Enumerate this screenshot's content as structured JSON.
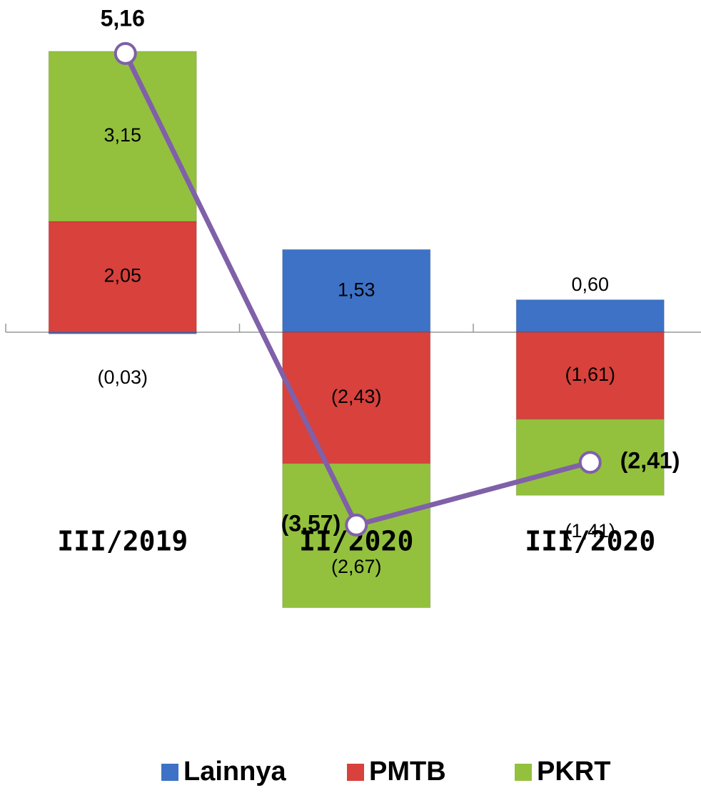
{
  "chart_data": {
    "type": "bar",
    "categories": [
      "III/2019",
      "II/2020",
      "III/2020"
    ],
    "series": [
      {
        "name": "Lainnya",
        "color": "#3d72c6",
        "values": [
          -0.03,
          1.53,
          0.6
        ],
        "value_labels": [
          "(0,03)",
          "1,53",
          "0,60"
        ]
      },
      {
        "name": "PMTB",
        "color": "#d8413c",
        "values": [
          2.05,
          -2.43,
          -1.61
        ],
        "value_labels": [
          "2,05",
          "(2,43)",
          "(1,61)"
        ]
      },
      {
        "name": "PKRT",
        "color": "#93c13e",
        "values": [
          3.15,
          -2.67,
          -1.41
        ],
        "value_labels": [
          "3,15",
          "(2,67)",
          "(1,41)"
        ]
      }
    ],
    "line": {
      "color": "#8060a8",
      "values": [
        5.16,
        -3.57,
        -2.41
      ],
      "value_labels": [
        "5,16",
        "(3,57)",
        "(2,41)"
      ]
    }
  }
}
